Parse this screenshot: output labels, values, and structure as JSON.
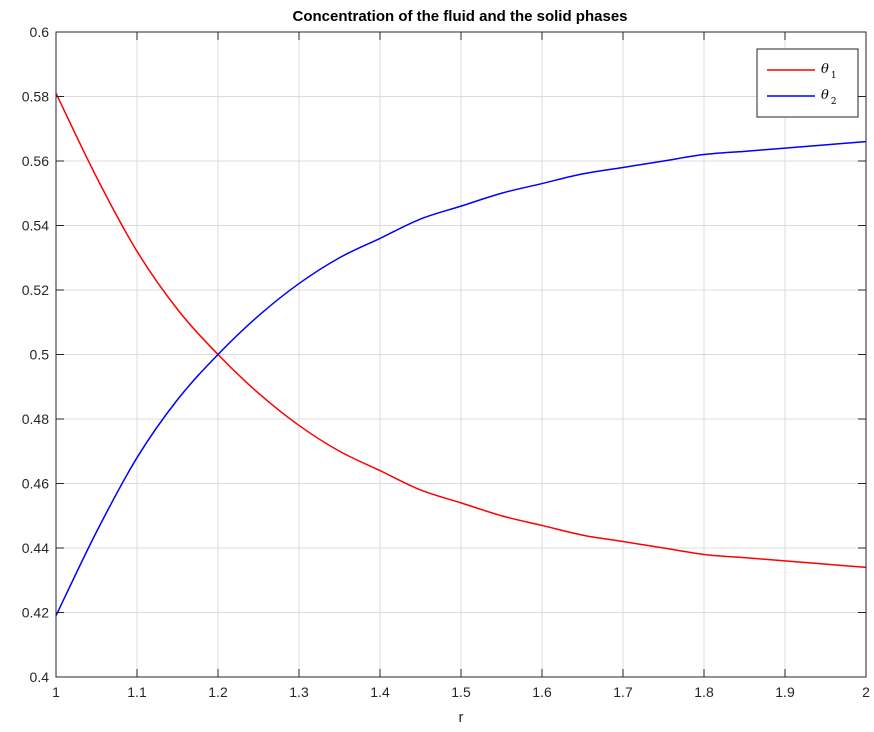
{
  "chart_data": {
    "type": "line",
    "title": "Concentration of the fluid and the solid phases",
    "xlabel": "r",
    "ylabel": "",
    "xlim": [
      1,
      2
    ],
    "ylim": [
      0.4,
      0.6
    ],
    "xticks": [
      1,
      1.1,
      1.2,
      1.3,
      1.4,
      1.5,
      1.6,
      1.7,
      1.8,
      1.9,
      2
    ],
    "xtick_labels": [
      "1",
      "1.1",
      "1.2",
      "1.3",
      "1.4",
      "1.5",
      "1.6",
      "1.7",
      "1.8",
      "1.9",
      "2"
    ],
    "yticks": [
      0.4,
      0.42,
      0.44,
      0.46,
      0.48,
      0.5,
      0.52,
      0.54,
      0.56,
      0.58,
      0.6
    ],
    "ytick_labels": [
      "0.4",
      "0.42",
      "0.44",
      "0.46",
      "0.48",
      "0.5",
      "0.52",
      "0.54",
      "0.56",
      "0.58",
      "0.6"
    ],
    "grid": true,
    "legend_position": "top-right",
    "series": [
      {
        "name": "θ1",
        "label_symbol": "θ",
        "label_subscript": "1",
        "color": "#ff0000",
        "x": [
          1.0,
          1.05,
          1.1,
          1.15,
          1.2,
          1.25,
          1.3,
          1.35,
          1.4,
          1.45,
          1.5,
          1.55,
          1.6,
          1.65,
          1.7,
          1.75,
          1.8,
          1.85,
          1.9,
          1.95,
          2.0
        ],
        "values": [
          0.581,
          0.555,
          0.532,
          0.514,
          0.5,
          0.488,
          0.478,
          0.47,
          0.464,
          0.458,
          0.454,
          0.45,
          0.447,
          0.444,
          0.442,
          0.44,
          0.438,
          0.437,
          0.436,
          0.435,
          0.434
        ]
      },
      {
        "name": "θ2",
        "label_symbol": "θ",
        "label_subscript": "2",
        "color": "#0000ff",
        "x": [
          1.0,
          1.05,
          1.1,
          1.15,
          1.2,
          1.25,
          1.3,
          1.35,
          1.4,
          1.45,
          1.5,
          1.55,
          1.6,
          1.65,
          1.7,
          1.75,
          1.8,
          1.85,
          1.9,
          1.95,
          2.0
        ],
        "values": [
          0.419,
          0.445,
          0.468,
          0.486,
          0.5,
          0.512,
          0.522,
          0.53,
          0.536,
          0.542,
          0.546,
          0.55,
          0.553,
          0.556,
          0.558,
          0.56,
          0.562,
          0.563,
          0.564,
          0.565,
          0.566
        ]
      }
    ]
  }
}
